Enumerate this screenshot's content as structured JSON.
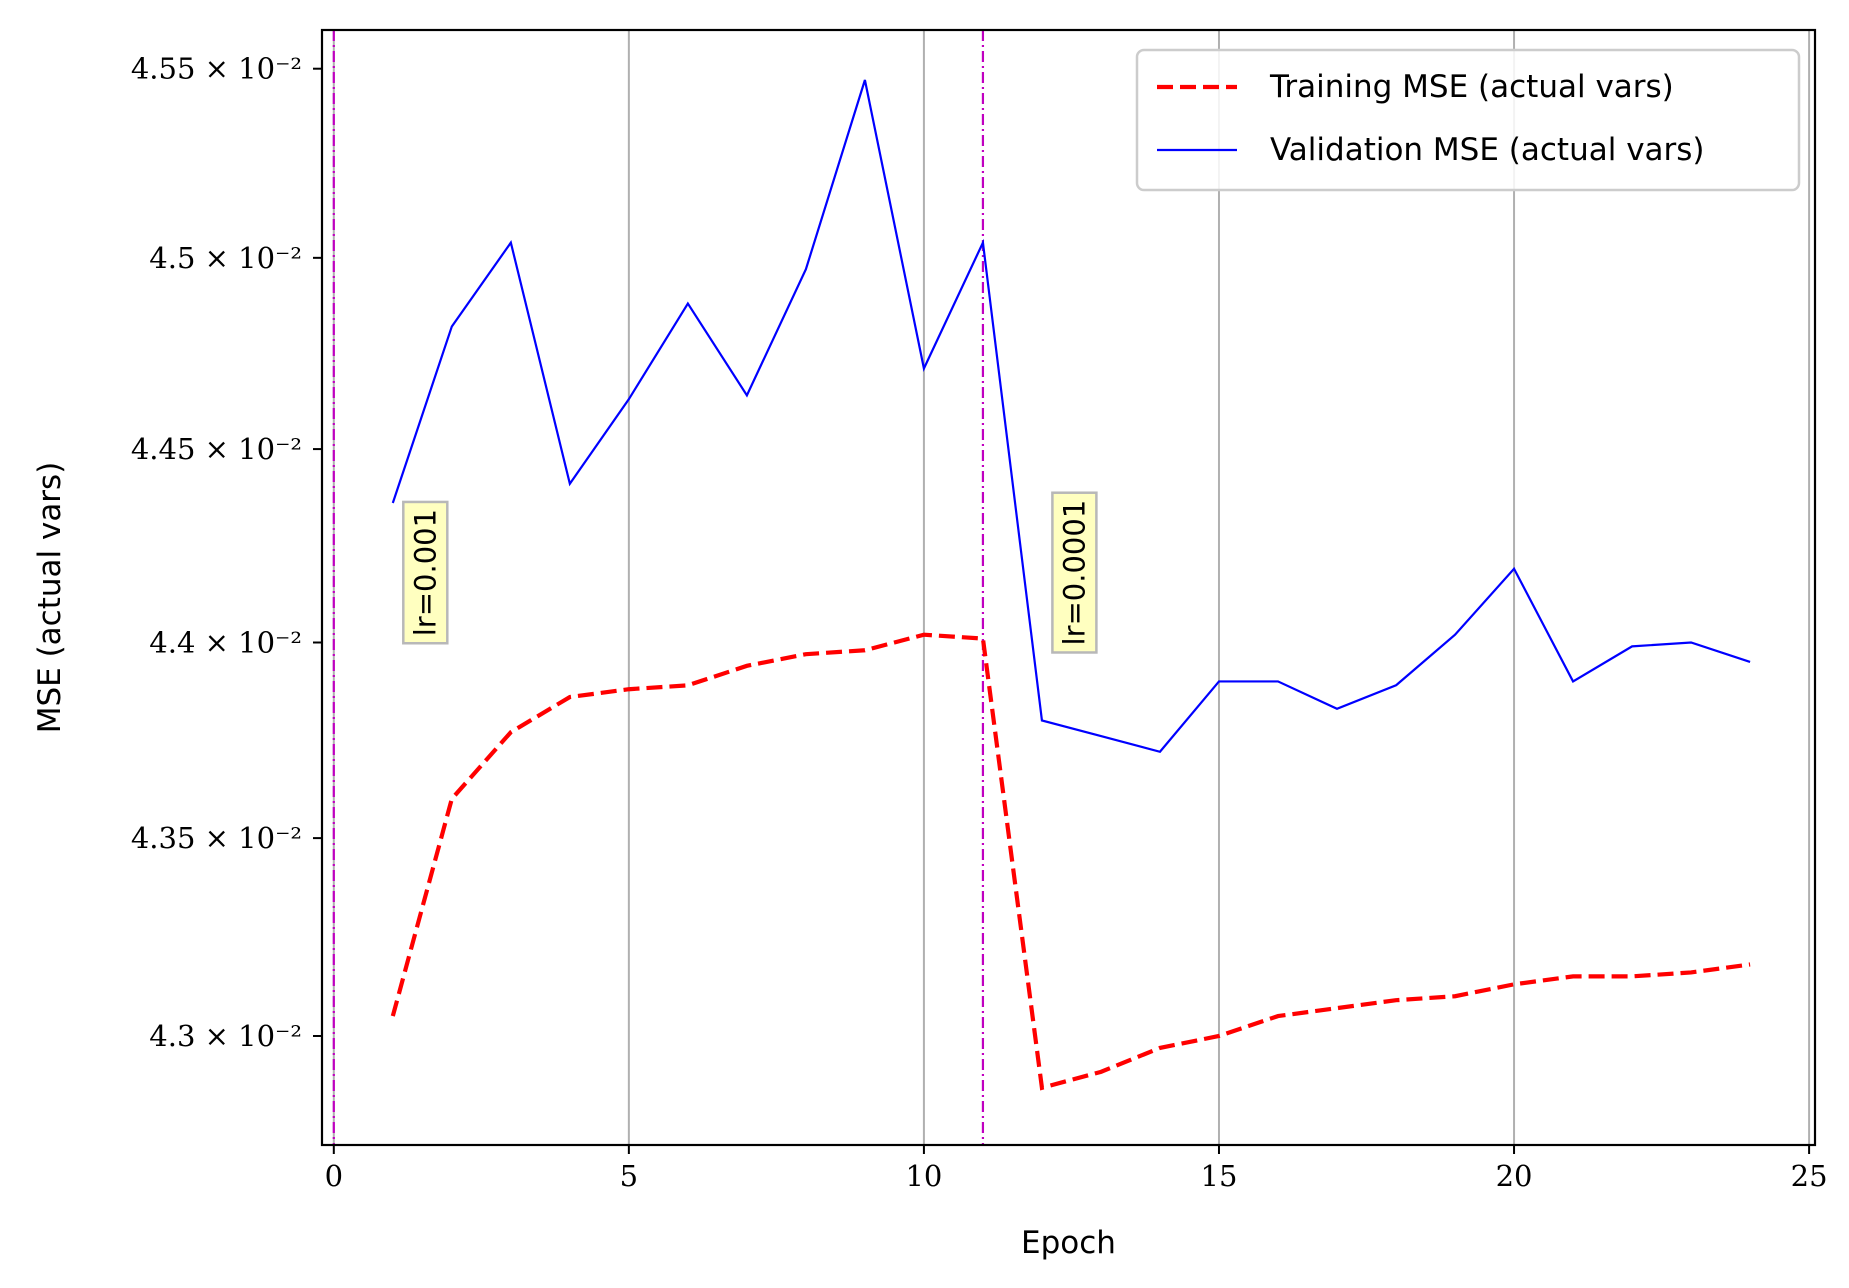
{
  "chart_data": {
    "type": "line",
    "xlabel": "Epoch",
    "ylabel": "MSE (actual vars)",
    "xlim": [
      -0.2,
      25.1
    ],
    "ylim": [
      0.042727,
      0.045603
    ],
    "x_ticks": [
      0,
      5,
      10,
      15,
      20,
      25
    ],
    "x_tick_labels": [
      "0",
      "5",
      "10",
      "15",
      "20",
      "25"
    ],
    "y_ticks": [
      0.043,
      0.0435,
      0.044,
      0.0445,
      0.045,
      0.0455
    ],
    "y_tick_labels": [
      "4.3 × 10⁻²",
      "4.35 × 10⁻²",
      "4.4 × 10⁻²",
      "4.45 × 10⁻²",
      "4.5 × 10⁻²",
      "4.55 × 10⁻²"
    ],
    "y_scale": "log",
    "grid": "vertical",
    "legend_position": "top-right",
    "series": [
      {
        "name": "Training MSE (actual vars)",
        "color": "#ff0000",
        "style": "dashed",
        "x": [
          1,
          2,
          3,
          4,
          5,
          6,
          7,
          8,
          9,
          10,
          11,
          12,
          13,
          14,
          15,
          16,
          17,
          18,
          19,
          20,
          21,
          22,
          23,
          24
        ],
        "values": [
          0.04305,
          0.0436,
          0.04377,
          0.04386,
          0.04388,
          0.04389,
          0.04394,
          0.04397,
          0.04398,
          0.04402,
          0.04401,
          0.04287,
          0.04291,
          0.04297,
          0.043,
          0.04305,
          0.04307,
          0.04309,
          0.0431,
          0.04313,
          0.04315,
          0.04315,
          0.04316,
          0.04318
        ]
      },
      {
        "name": "Validation MSE (actual vars)",
        "color": "#0000ff",
        "style": "solid",
        "x": [
          1,
          2,
          3,
          4,
          5,
          6,
          7,
          8,
          9,
          10,
          11,
          12,
          13,
          14,
          15,
          16,
          17,
          18,
          19,
          20,
          21,
          22,
          23,
          24
        ],
        "values": [
          0.04436,
          0.04482,
          0.04504,
          0.04441,
          0.04463,
          0.04488,
          0.04464,
          0.04497,
          0.04547,
          0.04471,
          0.04504,
          0.0438,
          0.04376,
          0.04372,
          0.0439,
          0.0439,
          0.04383,
          0.04389,
          0.04402,
          0.04419,
          0.0439,
          0.04399,
          0.044,
          0.04395
        ]
      }
    ],
    "vlines": [
      {
        "x": 0,
        "color": "#c000c0"
      },
      {
        "x": 11,
        "color": "#c000c0"
      }
    ],
    "annotations": [
      {
        "text": "lr=0.001",
        "x": 1.55,
        "y": 0.04418,
        "rotation": 90
      },
      {
        "text": "lr=0.0001",
        "x": 12.55,
        "y": 0.04418,
        "rotation": 90
      }
    ]
  }
}
